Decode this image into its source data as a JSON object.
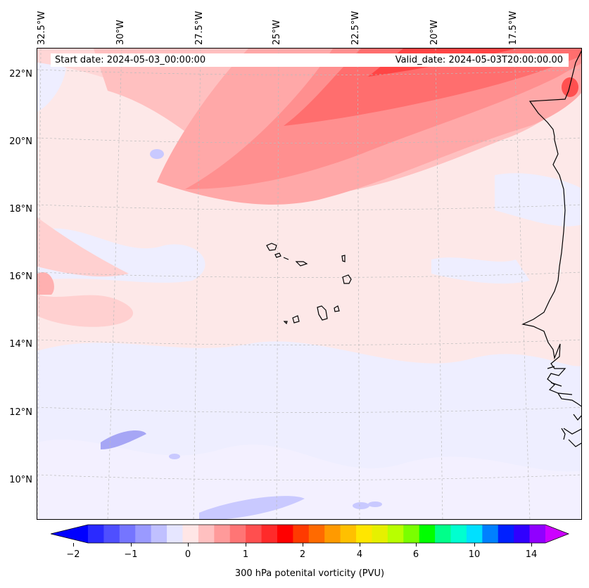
{
  "header": {
    "start_date": "Start date: 2024-05-03_00:00:00",
    "valid_date": "Valid_date: 2024-05-03T20:00:00.00"
  },
  "map": {
    "lon_labels": [
      "32.5°W",
      "30°W",
      "27.5°W",
      "25°W",
      "22.5°W",
      "20°W",
      "17.5°W"
    ],
    "lat_labels": [
      "22°N",
      "20°N",
      "18°N",
      "16°N",
      "14°N",
      "12°N",
      "10°N"
    ],
    "gridlines": "dashed",
    "region": "Cape Verde / West African coast",
    "colors": {
      "land_outline": "#000000",
      "background_low_positive": "#fde8e8",
      "negative": "#eeeeff"
    }
  },
  "colorbar": {
    "label": "300 hPa potenital vorticity (PVU)",
    "tick_labels": [
      "−2",
      "−1",
      "0",
      "1",
      "2",
      "4",
      "6",
      "10",
      "14"
    ],
    "colors": [
      "#0000ff",
      "#2a2aff",
      "#4f4fff",
      "#7575ff",
      "#9a9aff",
      "#c0c0ff",
      "#e6e6ff",
      "#ffe6e6",
      "#ffc0c0",
      "#ff9a9a",
      "#ff7575",
      "#ff4f4f",
      "#ff2a2a",
      "#ff0000",
      "#ff3a00",
      "#ff6a00",
      "#ff9a00",
      "#ffc000",
      "#ffe600",
      "#e6f000",
      "#b8ff00",
      "#7aff00",
      "#00ff00",
      "#00ff8a",
      "#00ffd0",
      "#00e0ff",
      "#0080ff",
      "#0020ff",
      "#3000ff",
      "#9000ff",
      "#cc00ff"
    ]
  }
}
